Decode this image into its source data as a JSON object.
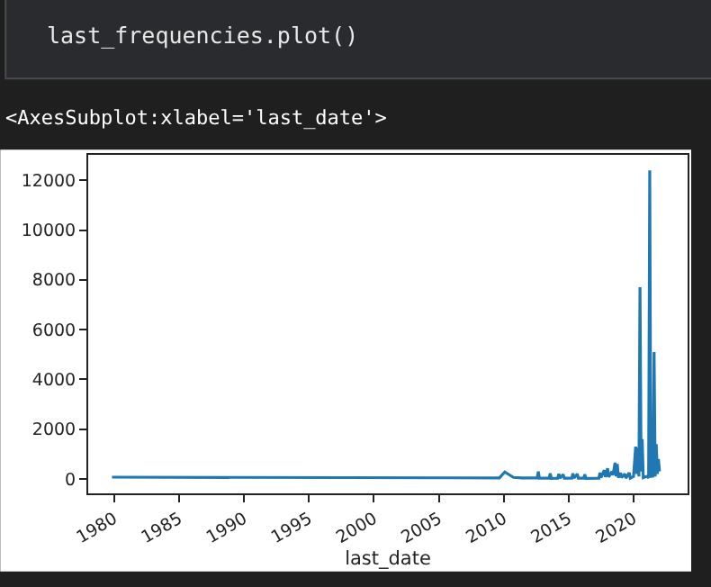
{
  "chart_data": {
    "type": "line",
    "xlabel": "last_date",
    "annotations": [
      "last_frequencies.plot()",
      "<AxesSubplot:xlabel='last_date'>"
    ],
    "x": [
      "1979-11",
      "2009-09",
      "2010-02",
      "2010-10",
      "2011-06",
      "2012-08",
      "2012-09",
      "2012-10",
      "2013-07",
      "2013-08",
      "2013-09",
      "2014-03",
      "2014-04",
      "2014-05",
      "2014-08",
      "2014-09",
      "2015-04",
      "2015-05",
      "2015-06",
      "2015-09",
      "2015-10",
      "2016-03",
      "2016-04",
      "2016-05",
      "2017-05",
      "2017-06",
      "2017-07",
      "2017-10",
      "2017-11",
      "2018-01",
      "2018-02",
      "2018-05",
      "2018-06",
      "2018-08",
      "2018-09",
      "2018-10",
      "2018-11",
      "2019-01",
      "2019-02",
      "2019-05",
      "2019-06",
      "2019-09",
      "2019-10",
      "2020-01",
      "2020-03",
      "2020-04",
      "2020-05",
      "2020-06",
      "2020-07",
      "2020-08",
      "2020-09",
      "2020-10",
      "2021-01",
      "2021-03",
      "2021-04",
      "2021-05",
      "2021-06",
      "2021-07",
      "2021-08",
      "2021-09",
      "2021-10",
      "2021-11",
      "2021-12",
      "2022-01"
    ],
    "series": [
      {
        "color": "#1f77b4",
        "values": [
          70,
          40,
          280,
          60,
          40,
          40,
          300,
          30,
          30,
          220,
          20,
          30,
          200,
          30,
          180,
          30,
          30,
          220,
          30,
          200,
          30,
          30,
          180,
          20,
          30,
          250,
          60,
          350,
          80,
          430,
          80,
          300,
          150,
          650,
          100,
          600,
          50,
          250,
          60,
          200,
          30,
          250,
          30,
          100,
          1300,
          200,
          1250,
          100,
          7700,
          300,
          1600,
          50,
          100,
          50,
          12400,
          50,
          450,
          60,
          5100,
          100,
          1400,
          200,
          800,
          300
        ]
      }
    ],
    "xlim": [
      "1978-01",
      "2024-03"
    ],
    "xticks": [
      "1980",
      "1985",
      "1990",
      "1995",
      "2000",
      "2005",
      "2010",
      "2015",
      "2020"
    ],
    "ylim": [
      -580,
      13020
    ],
    "yticks": [
      0,
      2000,
      4000,
      6000,
      8000,
      10000,
      12000
    ],
    "marker": "none",
    "line_style": "solid"
  }
}
